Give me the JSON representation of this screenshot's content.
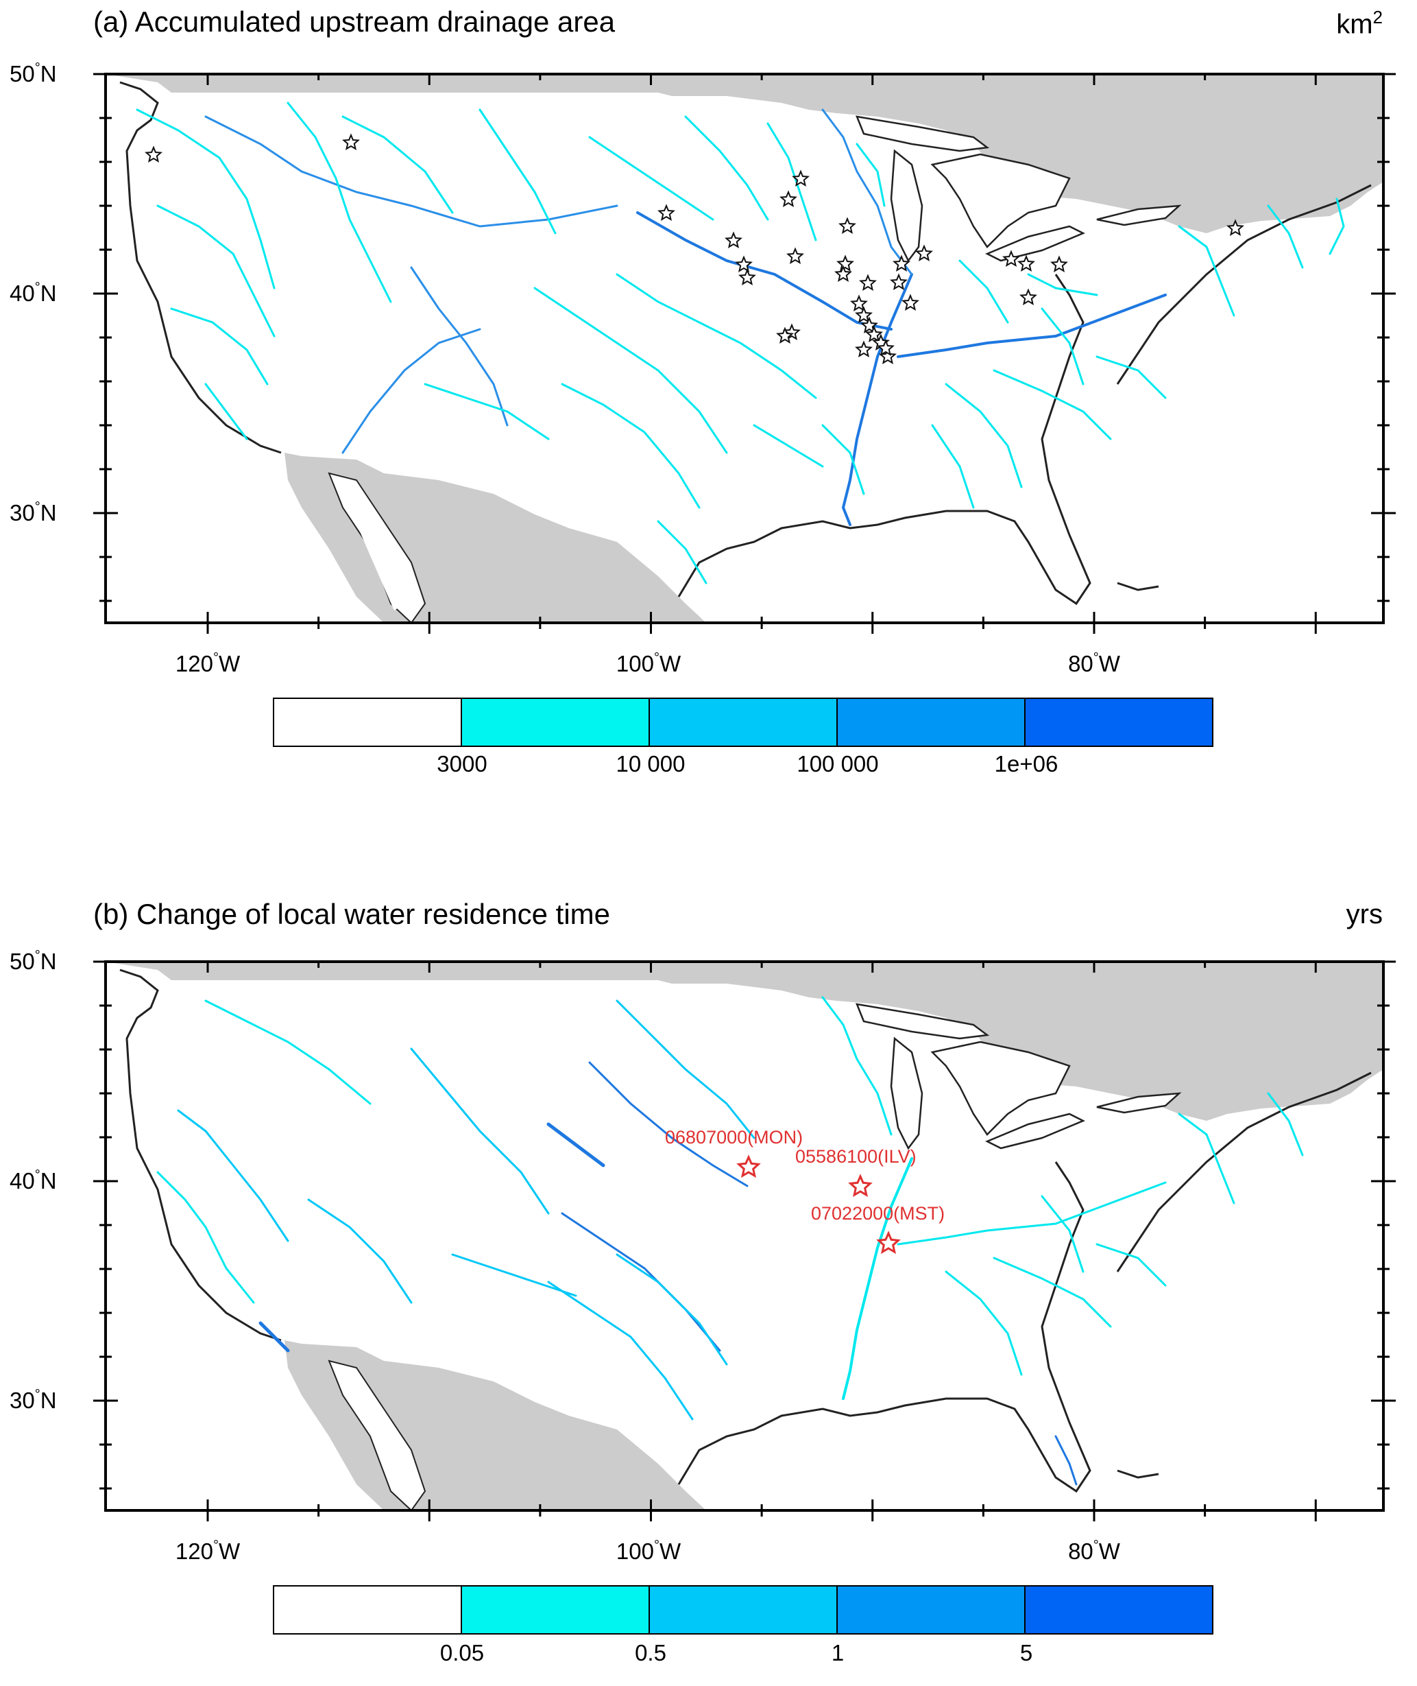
{
  "panel_a": {
    "title": "(a) Accumulated upstream drainage area",
    "unit": "km",
    "unit_sup": "2",
    "colorbar_labels": [
      "3000",
      "10 000",
      "100 000",
      "1e+06"
    ],
    "colorbar_colors": [
      "#ffffff",
      "#00f5f0",
      "#00c8f8",
      "#0096f5",
      "#0064f5"
    ]
  },
  "panel_b": {
    "title": "(b) Change of local water residence time",
    "unit": "yrs",
    "colorbar_labels": [
      "0.05",
      "0.5",
      "1",
      "5"
    ],
    "colorbar_colors": [
      "#ffffff",
      "#00f5f0",
      "#00c8f8",
      "#0096f5",
      "#0064f5"
    ],
    "gauges": [
      {
        "label": "06807000(MON)"
      },
      {
        "label": "05586100(ILV)"
      },
      {
        "label": "07022000(MST)"
      }
    ]
  },
  "axes": {
    "lat_labels": [
      {
        "value": 50,
        "text": "50",
        "hemi": "N"
      },
      {
        "value": 40,
        "text": "40",
        "hemi": "N"
      },
      {
        "value": 30,
        "text": "30",
        "hemi": "N"
      }
    ],
    "lon_labels": [
      {
        "value": -120,
        "text": "120",
        "hemi": "W"
      },
      {
        "value": -100,
        "text": "100",
        "hemi": "W"
      },
      {
        "value": -80,
        "text": "80",
        "hemi": "W"
      }
    ],
    "degree_symbol": "°"
  },
  "colors": {
    "land_outside": "#cccccc",
    "frame": "#000000",
    "star_label": "#e03030"
  }
}
